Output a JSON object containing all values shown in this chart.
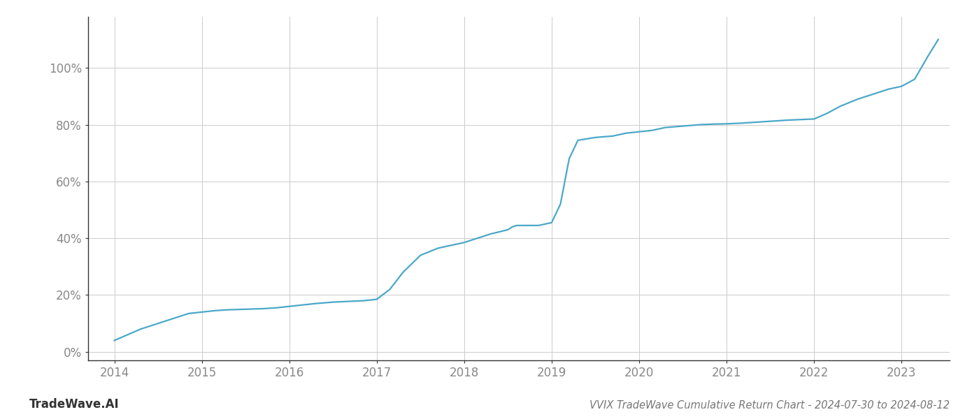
{
  "title": "VVIX TradeWave Cumulative Return Chart - 2024-07-30 to 2024-08-12",
  "watermark": "TradeWave.AI",
  "line_color": "#4aa8c8",
  "background_color": "#ffffff",
  "grid_color": "#cccccc",
  "x_values": [
    2014.0,
    2014.15,
    2014.3,
    2014.5,
    2014.7,
    2014.85,
    2015.0,
    2015.15,
    2015.3,
    2015.5,
    2015.7,
    2015.85,
    2016.0,
    2016.15,
    2016.3,
    2016.5,
    2016.7,
    2016.85,
    2017.0,
    2017.15,
    2017.3,
    2017.5,
    2017.7,
    2017.85,
    2018.0,
    2018.15,
    2018.3,
    2018.5,
    2018.55,
    2018.6,
    2018.65,
    2018.75,
    2018.85,
    2019.0,
    2019.1,
    2019.15,
    2019.2,
    2019.3,
    2019.5,
    2019.7,
    2019.85,
    2020.0,
    2020.15,
    2020.3,
    2020.5,
    2020.7,
    2020.85,
    2021.0,
    2021.15,
    2021.3,
    2021.5,
    2021.7,
    2021.85,
    2022.0,
    2022.15,
    2022.3,
    2022.5,
    2022.7,
    2022.85,
    2023.0,
    2023.15,
    2023.3,
    2023.42
  ],
  "y_values": [
    0.04,
    0.06,
    0.08,
    0.1,
    0.12,
    0.135,
    0.14,
    0.145,
    0.148,
    0.15,
    0.152,
    0.155,
    0.16,
    0.165,
    0.17,
    0.175,
    0.178,
    0.18,
    0.185,
    0.22,
    0.28,
    0.34,
    0.365,
    0.375,
    0.385,
    0.4,
    0.415,
    0.43,
    0.44,
    0.445,
    0.445,
    0.445,
    0.445,
    0.455,
    0.52,
    0.6,
    0.68,
    0.745,
    0.755,
    0.76,
    0.77,
    0.775,
    0.78,
    0.79,
    0.795,
    0.8,
    0.802,
    0.803,
    0.805,
    0.808,
    0.812,
    0.816,
    0.818,
    0.82,
    0.84,
    0.865,
    0.89,
    0.91,
    0.925,
    0.935,
    0.96,
    1.04,
    1.1
  ],
  "xticks": [
    2014,
    2015,
    2016,
    2017,
    2018,
    2019,
    2020,
    2021,
    2022,
    2023
  ],
  "yticks": [
    0.0,
    0.2,
    0.4,
    0.6,
    0.8,
    1.0
  ],
  "ytick_labels": [
    "0%",
    "20%",
    "40%",
    "60%",
    "80%",
    "100%"
  ],
  "xlim": [
    2013.7,
    2023.55
  ],
  "ylim": [
    -0.03,
    1.18
  ],
  "line_width": 1.6,
  "title_fontsize": 10.5,
  "tick_fontsize": 12,
  "watermark_fontsize": 12
}
